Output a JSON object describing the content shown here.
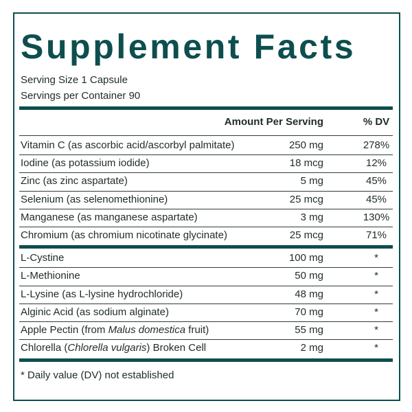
{
  "title": "Supplement Facts",
  "serving": [
    "Serving Size 1 Capsule",
    "Servings per Container 90"
  ],
  "header": {
    "amount": "Amount Per Serving",
    "dv": "% DV"
  },
  "groups": [
    [
      {
        "name": [
          "Vitamin C (as ascorbic acid/ascorbyl palmitate)"
        ],
        "amount": "250 mg",
        "dv": "278%"
      },
      {
        "name": [
          "Iodine (as potassium iodide)"
        ],
        "amount": "18 mcg",
        "dv": "12%"
      },
      {
        "name": [
          "Zinc (as zinc aspartate)"
        ],
        "amount": "5 mg",
        "dv": "45%"
      },
      {
        "name": [
          "Selenium (as selenomethionine)"
        ],
        "amount": "25 mcg",
        "dv": "45%"
      },
      {
        "name": [
          "Manganese (as manganese aspartate)"
        ],
        "amount": "3 mg",
        "dv": "130%"
      },
      {
        "name": [
          "Chromium (as chromium nicotinate glycinate)"
        ],
        "amount": "25 mcg",
        "dv": "71%"
      }
    ],
    [
      {
        "name": [
          "L-Cystine"
        ],
        "amount": "100 mg",
        "dv": "*"
      },
      {
        "name": [
          "L-Methionine"
        ],
        "amount": "50 mg",
        "dv": "*"
      },
      {
        "name": [
          "L-Lysine (as L-lysine hydrochloride)"
        ],
        "amount": "48 mg",
        "dv": "*"
      },
      {
        "name": [
          "Alginic Acid (as sodium alginate)"
        ],
        "amount": "70 mg",
        "dv": "*"
      },
      {
        "name": [
          "Apple Pectin (from ",
          "Malus domestica",
          " fruit)"
        ],
        "amount": "55 mg",
        "dv": "*"
      },
      {
        "name": [
          "Chlorella (",
          "Chlorella vulgaris",
          ") Broken Cell"
        ],
        "amount": "2 mg",
        "dv": "*"
      }
    ]
  ],
  "footnote": "* Daily value (DV) not established"
}
